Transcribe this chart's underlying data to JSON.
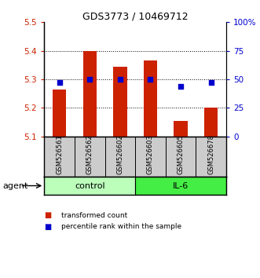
{
  "title": "GDS3773 / 10469712",
  "samples": [
    "GSM526561",
    "GSM526562",
    "GSM526602",
    "GSM526603",
    "GSM526605",
    "GSM526678"
  ],
  "bar_values": [
    5.265,
    5.4,
    5.345,
    5.365,
    5.155,
    5.2
  ],
  "bar_base": 5.1,
  "percentile_values": [
    47,
    50,
    50,
    50,
    44,
    47
  ],
  "ylim_left": [
    5.1,
    5.5
  ],
  "ylim_right": [
    0,
    100
  ],
  "yticks_left": [
    5.1,
    5.2,
    5.3,
    5.4,
    5.5
  ],
  "yticks_right": [
    0,
    25,
    50,
    75,
    100
  ],
  "ytick_labels_right": [
    "0",
    "25",
    "50",
    "75",
    "100%"
  ],
  "bar_color": "#cc2200",
  "blue_color": "#0000cc",
  "groups": [
    {
      "label": "control",
      "indices": [
        0,
        1,
        2
      ],
      "color": "#bbffbb"
    },
    {
      "label": "IL-6",
      "indices": [
        3,
        4,
        5
      ],
      "color": "#44ee44"
    }
  ],
  "agent_label": "agent",
  "legend_items": [
    {
      "label": "transformed count",
      "color": "#cc2200"
    },
    {
      "label": "percentile rank within the sample",
      "color": "#0000cc"
    }
  ],
  "grid_color": "black",
  "gridlines": [
    5.2,
    5.3,
    5.4
  ],
  "sample_box_color": "#cccccc",
  "fig_width": 3.31,
  "fig_height": 3.54,
  "dpi": 100
}
